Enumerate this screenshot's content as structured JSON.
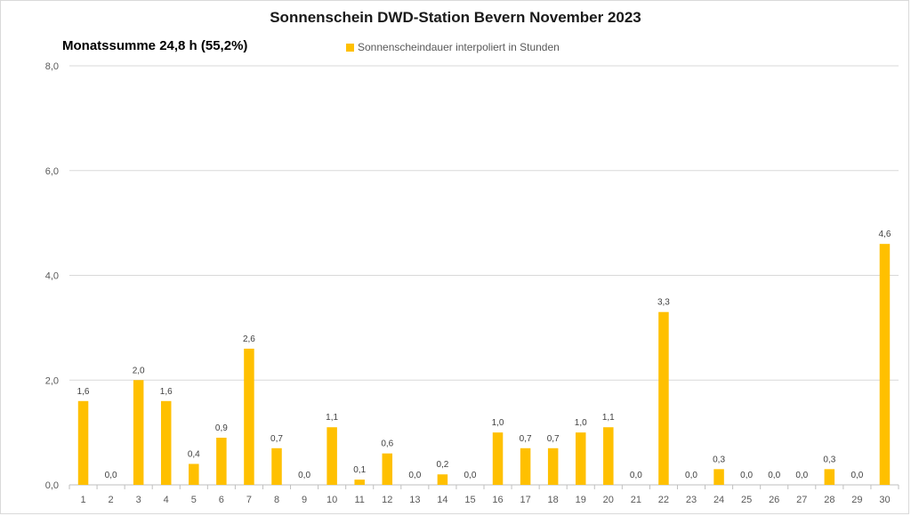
{
  "chart_data": {
    "type": "bar",
    "title": "Sonnenschein  DWD-Station  Bevern November 2023",
    "subtitle": "Monatssumme 24,8 h (55,2%)",
    "legend": {
      "position": "top-center",
      "entries": [
        "Sonnenscheindauer interpoliert in Stunden"
      ]
    },
    "categories": [
      "1",
      "2",
      "3",
      "4",
      "5",
      "6",
      "7",
      "8",
      "9",
      "10",
      "11",
      "12",
      "13",
      "14",
      "15",
      "16",
      "17",
      "18",
      "19",
      "20",
      "21",
      "22",
      "23",
      "24",
      "25",
      "26",
      "27",
      "28",
      "29",
      "30"
    ],
    "series": [
      {
        "name": "Sonnenscheindauer interpoliert in Stunden",
        "color": "#FFC000",
        "values": [
          1.6,
          0.0,
          2.0,
          1.6,
          0.4,
          0.9,
          2.6,
          0.7,
          0.0,
          1.1,
          0.1,
          0.6,
          0.0,
          0.2,
          0.0,
          1.0,
          0.7,
          0.7,
          1.0,
          1.1,
          0.0,
          3.3,
          0.0,
          0.3,
          0.0,
          0.0,
          0.0,
          0.3,
          0.0,
          4.6
        ],
        "labels": [
          "1,6",
          "0,0",
          "2,0",
          "1,6",
          "0,4",
          "0,9",
          "2,6",
          "0,7",
          "0,0",
          "1,1",
          "0,1",
          "0,6",
          "0,0",
          "0,2",
          "0,0",
          "1,0",
          "0,7",
          "0,7",
          "1,0",
          "1,1",
          "0,0",
          "3,3",
          "0,0",
          "0,3",
          "0,0",
          "0,0",
          "0,0",
          "0,3",
          "0,0",
          "4,6"
        ]
      }
    ],
    "ylim": [
      0,
      8
    ],
    "yticks": [
      0,
      2,
      4,
      6,
      8
    ],
    "ytick_labels": [
      "0,0",
      "2,0",
      "4,0",
      "6,0",
      "8,0"
    ],
    "grid": true,
    "xlabel": "",
    "ylabel": ""
  }
}
